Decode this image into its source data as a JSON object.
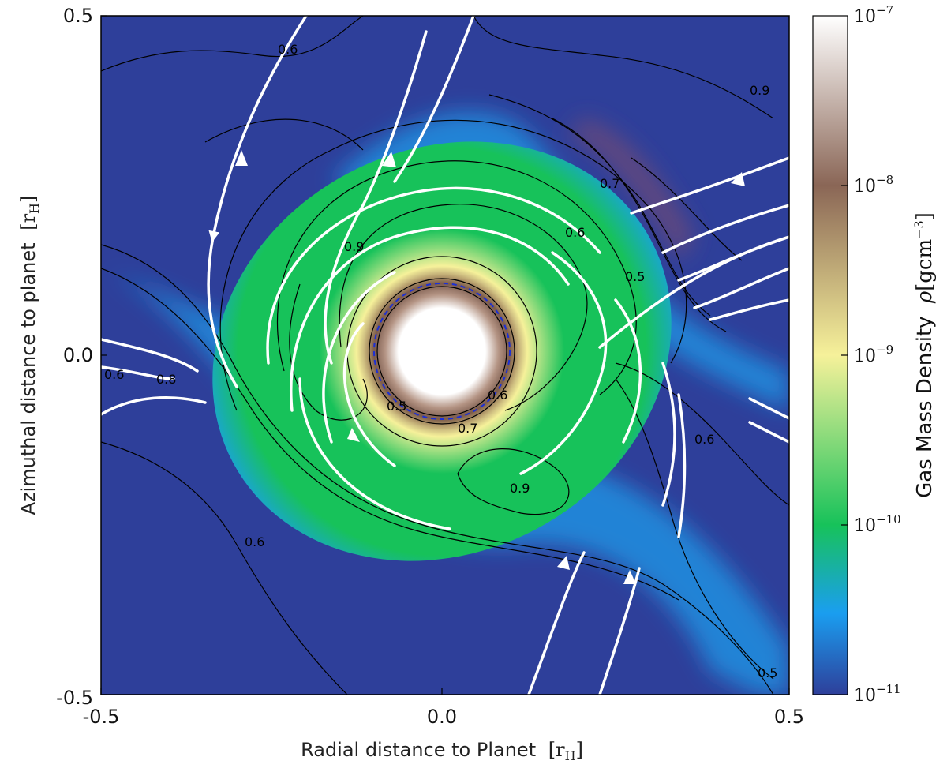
{
  "chart_data": {
    "type": "heatmap",
    "xlabel": "Radial distance to Planet",
    "xlabel_unit": "r",
    "xlabel_unit_sub": "H",
    "ylabel": "Azimuthal distance to planet",
    "ylabel_unit": "r",
    "ylabel_unit_sub": "H",
    "xlim": [
      -0.5,
      0.5
    ],
    "ylim": [
      -0.5,
      0.5
    ],
    "x_ticks": [
      "-0.5",
      "0.0",
      "0.5"
    ],
    "y_ticks": [
      "0.5",
      "0.0",
      "-0.5"
    ],
    "colorbar": {
      "label": "Gas Mass Density",
      "symbol": "ρ",
      "unit": "gcm",
      "unit_exp": "−3",
      "scale": "log",
      "range": [
        1e-11,
        1e-07
      ],
      "tick_base": "10",
      "tick_exponents": [
        "−7",
        "−8",
        "−9",
        "−10",
        "−11"
      ],
      "colors": [
        "#ffffff",
        "#8a6656",
        "#f6f19a",
        "#17c25a",
        "#1a9ef0",
        "#2e3f9a"
      ]
    },
    "contour_labels": [
      "0.6",
      "0.9",
      "0.7",
      "0.6",
      "0.5",
      "0.9",
      "0.8",
      "0.5",
      "0.6",
      "0.7",
      "0.6",
      "0.9",
      "0.6",
      "0.6",
      "0.5"
    ],
    "streamline_color": "#ffffff",
    "contour_color": "#000000",
    "hill_radius_marker": {
      "style": "dashed",
      "color": "#1c2fd6"
    }
  }
}
